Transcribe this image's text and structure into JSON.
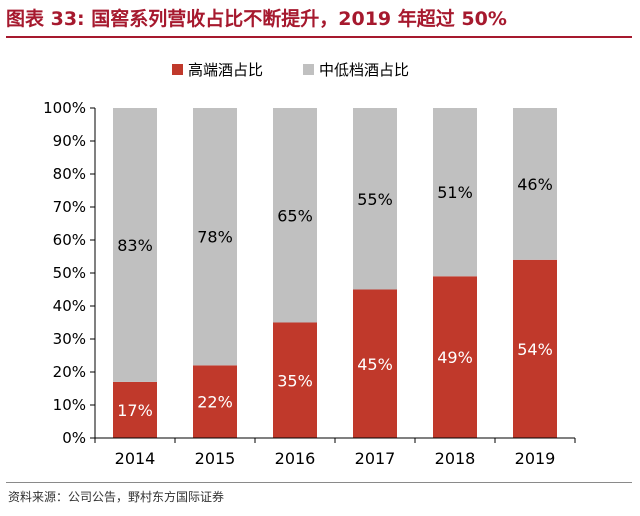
{
  "title": "图表 33: 国窖系列营收占比不断提升，2019 年超过 50%",
  "source": "资料来源：公司公告，野村东方国际证券",
  "colors": {
    "title": "#a6192e",
    "high_end": "#c0392b",
    "mid_low": "#c0c0c0"
  },
  "chart_data": {
    "type": "bar",
    "stacked": true,
    "categories": [
      "2014",
      "2015",
      "2016",
      "2017",
      "2018",
      "2019"
    ],
    "series": [
      {
        "name": "高端酒占比",
        "values": [
          17,
          22,
          35,
          45,
          49,
          54
        ],
        "labels": [
          "17%",
          "22%",
          "35%",
          "45%",
          "49%",
          "54%"
        ],
        "color": "#c0392b"
      },
      {
        "name": "中低档酒占比",
        "values": [
          83,
          78,
          65,
          55,
          51,
          46
        ],
        "labels": [
          "83%",
          "78%",
          "65%",
          "55%",
          "51%",
          "46%"
        ],
        "color": "#c0c0c0"
      }
    ],
    "ylim": [
      0,
      100
    ],
    "yticks": [
      "0%",
      "10%",
      "20%",
      "30%",
      "40%",
      "50%",
      "60%",
      "70%",
      "80%",
      "90%",
      "100%"
    ],
    "legend_position": "top-center",
    "grid": false
  }
}
